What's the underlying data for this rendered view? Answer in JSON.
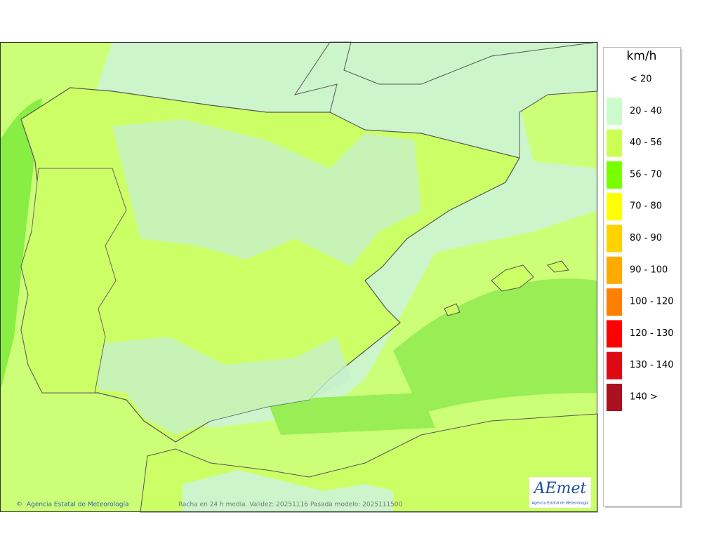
{
  "legend": {
    "unit": "km/h",
    "items": [
      {
        "label": "< 20",
        "color": "#ffffff"
      },
      {
        "label": "20 - 40",
        "color": "#ccfccc"
      },
      {
        "label": "40 - 56",
        "color": "#ccff55"
      },
      {
        "label": "56 - 70",
        "color": "#77ff00"
      },
      {
        "label": "70 - 80",
        "color": "#ffff00"
      },
      {
        "label": "80 - 90",
        "color": "#ffd200"
      },
      {
        "label": "90 - 100",
        "color": "#ffaa00"
      },
      {
        "label": "100 - 120",
        "color": "#ff8000"
      },
      {
        "label": "120 - 130",
        "color": "#ff0000"
      },
      {
        "label": "130 - 140",
        "color": "#dd0a14"
      },
      {
        "label": "140 >",
        "color": "#aa1020"
      }
    ]
  },
  "footer": {
    "credit": "Agencia Estatal de Meteorología",
    "caption": "Racha en 24 h media. Validez: 20251116 Pasada modelo: 2025111500"
  },
  "logo": {
    "name": "AEmet",
    "subtitle": "Agencia Estatal de Meteorología"
  }
}
